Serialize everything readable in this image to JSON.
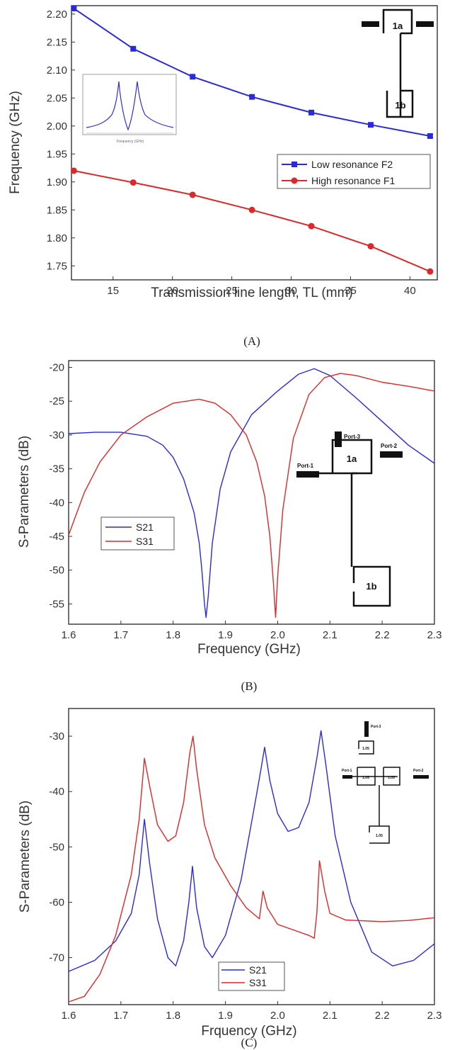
{
  "chart_data": [
    {
      "id": "A",
      "type": "line",
      "caption": "(A)",
      "xlabel": "Transmission line length, TL (mm)",
      "ylabel": "Frequency (GHz)",
      "xlim": [
        11.5,
        42.3
      ],
      "ylim": [
        1.725,
        2.215
      ],
      "xticks": [
        15,
        20,
        25,
        30,
        35,
        40
      ],
      "yticks": [
        1.75,
        1.8,
        1.85,
        1.9,
        1.95,
        2.0,
        2.05,
        2.1,
        2.15,
        2.2
      ],
      "ytick_labels": [
        "1.75",
        "1.80",
        "1.85",
        "1.90",
        "1.95",
        "2.00",
        "2.05",
        "2.10",
        "2.15",
        "2.20"
      ],
      "x": [
        11.7,
        16.7,
        21.7,
        26.7,
        31.7,
        36.7,
        41.7
      ],
      "series": [
        {
          "name": "Low resonance F2",
          "color": "#2a2ad8",
          "marker": "square",
          "values": [
            2.21,
            2.138,
            2.088,
            2.052,
            2.024,
            2.002,
            1.982
          ]
        },
        {
          "name": "High resonance F1",
          "color": "#d82a2a",
          "marker": "circle",
          "values": [
            1.92,
            1.899,
            1.877,
            1.85,
            1.821,
            1.785,
            1.74
          ]
        }
      ],
      "legend_position": "right-middle",
      "schematic_labels": [
        "1a",
        "1b"
      ]
    },
    {
      "id": "B",
      "type": "line",
      "caption": "(B)",
      "xlabel": "Frequency (GHz)",
      "ylabel": "S-Parameters (dB)",
      "xlim": [
        1.6,
        2.3
      ],
      "ylim": [
        -58,
        -19
      ],
      "xticks": [
        1.6,
        1.7,
        1.8,
        1.9,
        2.0,
        2.1,
        2.2,
        2.3
      ],
      "xtick_labels": [
        "1.6",
        "1.7",
        "1.8",
        "1.9",
        "2.0",
        "2.1",
        "2.2",
        "2.3"
      ],
      "yticks": [
        -55,
        -50,
        -45,
        -40,
        -35,
        -30,
        -25,
        -20
      ],
      "series": [
        {
          "name": "S21",
          "color": "#2a2ad8",
          "points": [
            [
              1.6,
              -29.8
            ],
            [
              1.65,
              -29.6
            ],
            [
              1.7,
              -29.6
            ],
            [
              1.75,
              -30.2
            ],
            [
              1.78,
              -31.5
            ],
            [
              1.8,
              -33.3
            ],
            [
              1.82,
              -36.5
            ],
            [
              1.84,
              -41.5
            ],
            [
              1.85,
              -46
            ],
            [
              1.855,
              -50
            ],
            [
              1.86,
              -55
            ],
            [
              1.863,
              -57
            ],
            [
              1.867,
              -54
            ],
            [
              1.875,
              -46
            ],
            [
              1.89,
              -38
            ],
            [
              1.91,
              -32.5
            ],
            [
              1.95,
              -27
            ],
            [
              2.0,
              -23.5
            ],
            [
              2.04,
              -21
            ],
            [
              2.07,
              -20.2
            ],
            [
              2.1,
              -21.2
            ],
            [
              2.15,
              -24.5
            ],
            [
              2.2,
              -28
            ],
            [
              2.25,
              -31.5
            ],
            [
              2.3,
              -34.2
            ]
          ]
        },
        {
          "name": "S31",
          "color": "#d82a2a",
          "points": [
            [
              1.6,
              -44.8
            ],
            [
              1.63,
              -38.5
            ],
            [
              1.66,
              -34
            ],
            [
              1.7,
              -30
            ],
            [
              1.75,
              -27.3
            ],
            [
              1.8,
              -25.3
            ],
            [
              1.85,
              -24.7
            ],
            [
              1.88,
              -25.3
            ],
            [
              1.91,
              -27
            ],
            [
              1.94,
              -30
            ],
            [
              1.96,
              -34
            ],
            [
              1.975,
              -39
            ],
            [
              1.985,
              -45
            ],
            [
              1.992,
              -52
            ],
            [
              1.996,
              -57
            ],
            [
              2.0,
              -51
            ],
            [
              2.01,
              -41
            ],
            [
              2.03,
              -30.5
            ],
            [
              2.06,
              -24
            ],
            [
              2.09,
              -21.5
            ],
            [
              2.12,
              -20.9
            ],
            [
              2.15,
              -21.2
            ],
            [
              2.2,
              -22.2
            ],
            [
              2.25,
              -22.8
            ],
            [
              2.3,
              -23.5
            ]
          ]
        }
      ],
      "legend_position": "left-middle",
      "schematic_labels": [
        "Port-3",
        "Port-2",
        "Port-1",
        "1a",
        "1b"
      ]
    },
    {
      "id": "C",
      "type": "line",
      "caption": "(C)",
      "xlabel": "Frquency (GHz)",
      "ylabel": "S-Parameters (dB)",
      "xlim": [
        1.6,
        2.3
      ],
      "ylim": [
        -78.5,
        -25
      ],
      "xticks": [
        1.6,
        1.7,
        1.8,
        1.9,
        2.0,
        2.1,
        2.2,
        2.3
      ],
      "xtick_labels": [
        "1.6",
        "1.7",
        "1.8",
        "1.9",
        "2.0",
        "2.1",
        "2.2",
        "2.3"
      ],
      "yticks": [
        -70,
        -60,
        -50,
        -40,
        -30
      ],
      "series": [
        {
          "name": "S21",
          "color": "#2a2ad8",
          "points": [
            [
              1.6,
              -72.5
            ],
            [
              1.65,
              -70.5
            ],
            [
              1.69,
              -67
            ],
            [
              1.72,
              -62
            ],
            [
              1.735,
              -55
            ],
            [
              1.745,
              -45
            ],
            [
              1.755,
              -53
            ],
            [
              1.77,
              -63
            ],
            [
              1.79,
              -70
            ],
            [
              1.805,
              -71.5
            ],
            [
              1.82,
              -67
            ],
            [
              1.83,
              -60
            ],
            [
              1.837,
              -53.5
            ],
            [
              1.845,
              -61
            ],
            [
              1.86,
              -68
            ],
            [
              1.875,
              -70
            ],
            [
              1.9,
              -66
            ],
            [
              1.93,
              -56
            ],
            [
              1.955,
              -43
            ],
            [
              1.968,
              -36
            ],
            [
              1.975,
              -32
            ],
            [
              1.985,
              -38
            ],
            [
              2.0,
              -44
            ],
            [
              2.02,
              -47.2
            ],
            [
              2.04,
              -46.5
            ],
            [
              2.06,
              -42
            ],
            [
              2.075,
              -34
            ],
            [
              2.083,
              -29
            ],
            [
              2.092,
              -35
            ],
            [
              2.11,
              -48
            ],
            [
              2.14,
              -60
            ],
            [
              2.18,
              -69
            ],
            [
              2.22,
              -71.5
            ],
            [
              2.26,
              -70.5
            ],
            [
              2.3,
              -67.5
            ]
          ]
        },
        {
          "name": "S31",
          "color": "#d82a2a",
          "points": [
            [
              1.6,
              -78
            ],
            [
              1.63,
              -77
            ],
            [
              1.66,
              -73
            ],
            [
              1.69,
              -66
            ],
            [
              1.72,
              -55
            ],
            [
              1.735,
              -45
            ],
            [
              1.745,
              -34
            ],
            [
              1.755,
              -39
            ],
            [
              1.77,
              -46
            ],
            [
              1.79,
              -49
            ],
            [
              1.805,
              -48
            ],
            [
              1.82,
              -42
            ],
            [
              1.832,
              -33
            ],
            [
              1.838,
              -30
            ],
            [
              1.845,
              -36
            ],
            [
              1.86,
              -46
            ],
            [
              1.88,
              -52
            ],
            [
              1.91,
              -57
            ],
            [
              1.94,
              -61
            ],
            [
              1.965,
              -63
            ],
            [
              1.972,
              -58
            ],
            [
              1.98,
              -61
            ],
            [
              2.0,
              -64
            ],
            [
              2.03,
              -65
            ],
            [
              2.06,
              -66
            ],
            [
              2.07,
              -66.5
            ],
            [
              2.075,
              -62
            ],
            [
              2.08,
              -52.5
            ],
            [
              2.09,
              -58
            ],
            [
              2.1,
              -62
            ],
            [
              2.13,
              -63.2
            ],
            [
              2.2,
              -63.5
            ],
            [
              2.25,
              -63.3
            ],
            [
              2.3,
              -62.8
            ]
          ]
        }
      ],
      "legend_position": "bottom-center",
      "schematic_labels": [
        "Port-3",
        "Port-1",
        "Port-2",
        "1.05",
        "1.05",
        "1.05",
        "1.05"
      ]
    }
  ]
}
